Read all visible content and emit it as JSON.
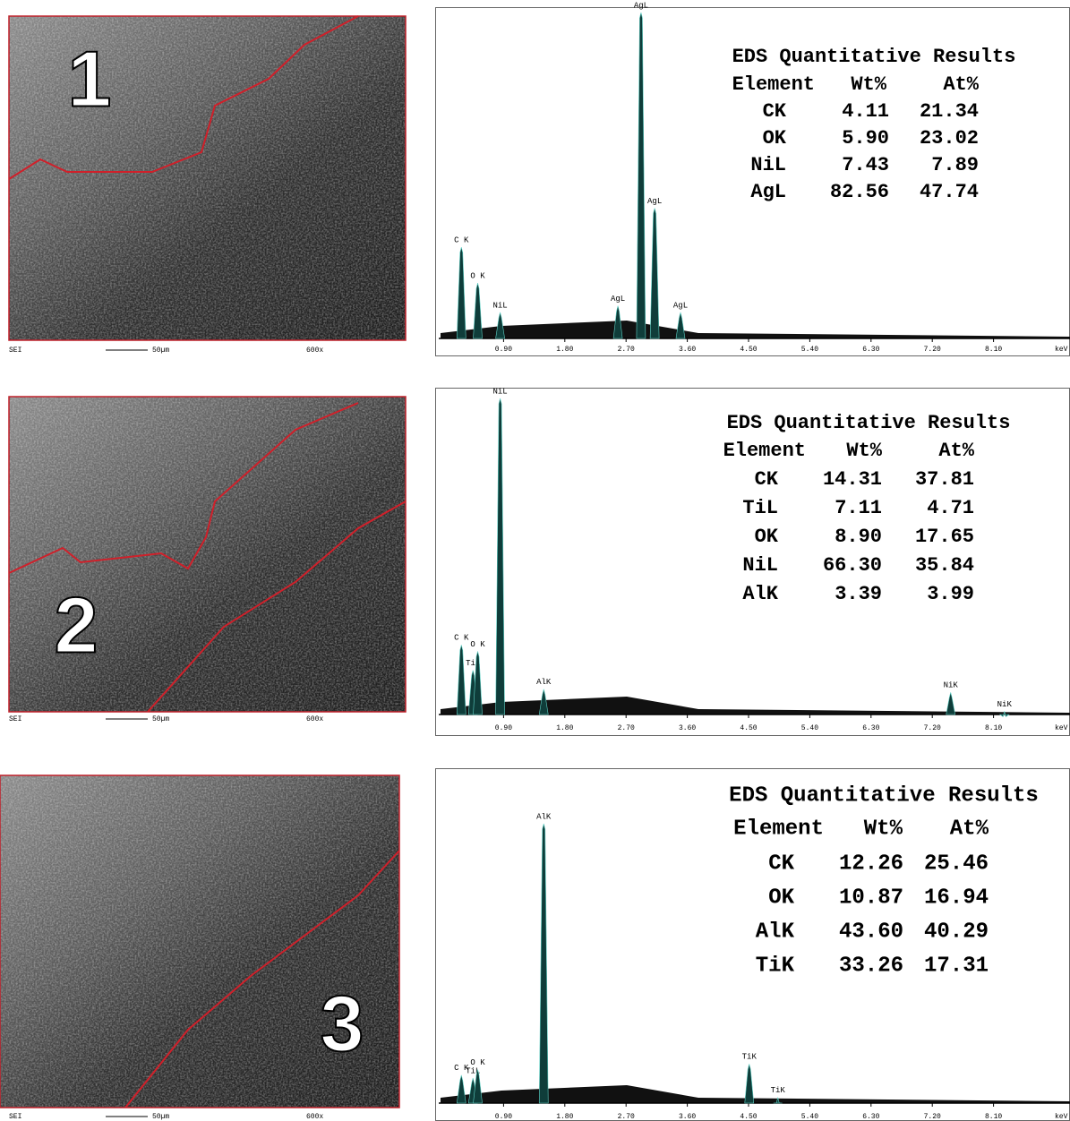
{
  "panels": [
    {
      "number": "1",
      "sem": {
        "detector": "SEI",
        "scale": "50µm",
        "magnification": "600x"
      },
      "spectrum": {
        "unit": "keV",
        "ylim": [
          0,
          100
        ],
        "xticks": [
          {
            "value": 0.9,
            "label": "0.90"
          },
          {
            "value": 1.8,
            "label": "1.80"
          },
          {
            "value": 2.7,
            "label": "2.70"
          },
          {
            "value": 3.6,
            "label": "3.60"
          },
          {
            "value": 4.5,
            "label": "4.50"
          },
          {
            "value": 5.4,
            "label": "5.40"
          },
          {
            "value": 6.3,
            "label": "6.30"
          },
          {
            "value": 7.2,
            "label": "7.20"
          },
          {
            "value": 8.1,
            "label": "8.10"
          }
        ],
        "peaks": [
          {
            "label": "C K",
            "kev": 0.28,
            "height": 28
          },
          {
            "label": "O K",
            "kev": 0.52,
            "height": 17
          },
          {
            "label": "NiL",
            "kev": 0.85,
            "height": 8
          },
          {
            "label": "AgL",
            "kev": 2.58,
            "height": 10
          },
          {
            "label": "AgL",
            "kev": 2.92,
            "height": 100
          },
          {
            "label": "AgL",
            "kev": 3.12,
            "height": 40
          },
          {
            "label": "AgL",
            "kev": 3.5,
            "height": 8
          }
        ]
      },
      "results": {
        "title": "EDS Quantitative Results",
        "header": [
          "Element",
          "Wt%",
          "At%"
        ],
        "rows": [
          [
            "CK",
            "4.11",
            "21.34"
          ],
          [
            "OK",
            "5.90",
            "23.02"
          ],
          [
            "NiL",
            "7.43",
            "7.89"
          ],
          [
            "AgL",
            "82.56",
            "47.74"
          ]
        ]
      }
    },
    {
      "number": "2",
      "sem": {
        "detector": "SEI",
        "scale": "50µm",
        "magnification": "600x"
      },
      "spectrum": {
        "unit": "keV",
        "ylim": [
          0,
          100
        ],
        "xticks": [
          {
            "value": 0.9,
            "label": "0.90"
          },
          {
            "value": 1.8,
            "label": "1.80"
          },
          {
            "value": 2.7,
            "label": "2.70"
          },
          {
            "value": 3.6,
            "label": "3.60"
          },
          {
            "value": 4.5,
            "label": "4.50"
          },
          {
            "value": 5.4,
            "label": "5.40"
          },
          {
            "value": 6.3,
            "label": "6.30"
          },
          {
            "value": 7.2,
            "label": "7.20"
          },
          {
            "value": 8.1,
            "label": "8.10"
          }
        ],
        "peaks": [
          {
            "label": "C K",
            "kev": 0.28,
            "height": 22
          },
          {
            "label": "TiL",
            "kev": 0.45,
            "height": 14
          },
          {
            "label": "O K",
            "kev": 0.52,
            "height": 20
          },
          {
            "label": "NiL",
            "kev": 0.85,
            "height": 100
          },
          {
            "label": "AlK",
            "kev": 1.49,
            "height": 8
          },
          {
            "label": "NiK",
            "kev": 7.47,
            "height": 7
          },
          {
            "label": "NiK",
            "kev": 8.26,
            "height": 1
          }
        ]
      },
      "results": {
        "title": "EDS Quantitative Results",
        "header": [
          "Element",
          "Wt%",
          "At%"
        ],
        "rows": [
          [
            "CK",
            "14.31",
            "37.81"
          ],
          [
            "TiL",
            "7.11",
            "4.71"
          ],
          [
            "OK",
            "8.90",
            "17.65"
          ],
          [
            "NiL",
            "66.30",
            "35.84"
          ],
          [
            "AlK",
            "3.39",
            "3.99"
          ]
        ]
      }
    },
    {
      "number": "3",
      "sem": {
        "detector": "SEI",
        "scale": "50µm",
        "magnification": "600x"
      },
      "spectrum": {
        "unit": "keV",
        "ylim": [
          0,
          100
        ],
        "xticks": [
          {
            "value": 0.9,
            "label": "0.90"
          },
          {
            "value": 1.8,
            "label": "1.80"
          },
          {
            "value": 2.7,
            "label": "2.70"
          },
          {
            "value": 3.6,
            "label": "3.60"
          },
          {
            "value": 4.5,
            "label": "4.50"
          },
          {
            "value": 5.4,
            "label": "5.40"
          },
          {
            "value": 6.3,
            "label": "6.30"
          },
          {
            "value": 7.2,
            "label": "7.20"
          },
          {
            "value": 8.1,
            "label": "8.10"
          }
        ],
        "peaks": [
          {
            "label": "C K",
            "kev": 0.28,
            "height": 10
          },
          {
            "label": "TiL",
            "kev": 0.45,
            "height": 9
          },
          {
            "label": "O K",
            "kev": 0.52,
            "height": 12
          },
          {
            "label": "AlK",
            "kev": 1.49,
            "height": 100
          },
          {
            "label": "TiK",
            "kev": 4.51,
            "height": 14
          },
          {
            "label": "TiK",
            "kev": 4.93,
            "height": 2
          }
        ]
      },
      "results": {
        "title": "EDS Quantitative Results",
        "header": [
          "Element",
          "Wt%",
          "At%"
        ],
        "rows": [
          [
            "CK",
            "12.26",
            "25.46"
          ],
          [
            "OK",
            "10.87",
            "16.94"
          ],
          [
            "AlK",
            "43.60",
            "40.29"
          ],
          [
            "TiK",
            "33.26",
            "17.31"
          ]
        ]
      }
    }
  ]
}
